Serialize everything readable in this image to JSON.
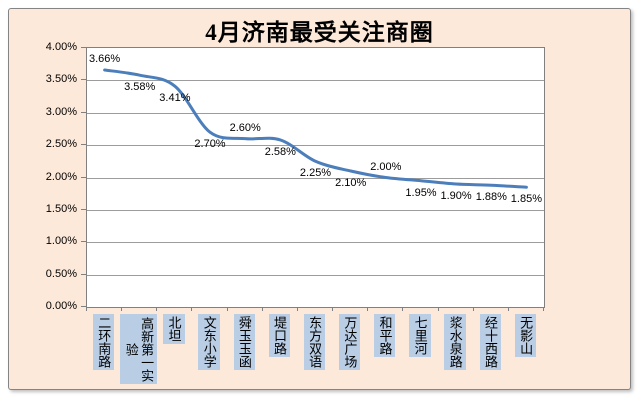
{
  "chart": {
    "frame_background": "#FDE9D9",
    "frame_border": "#848484",
    "plot_background": "#FFFFFF",
    "plot_border": "#808080",
    "gridline_color": "#9C9C9C",
    "series_color": "#4C7EBB",
    "category_highlight": "#B9CDE5",
    "text_color": "#000000"
  },
  "chart_data": {
    "type": "line",
    "title": "4月济南最受关注商圈",
    "categories": [
      "二环南路",
      "高新第一实验",
      "北坦",
      "文东小学",
      "舜玉玉函",
      "堤口路",
      "东方双语",
      "万达广场",
      "和平路",
      "七里河",
      "浆水泉路",
      "经十西路",
      "无影山"
    ],
    "values": [
      3.66,
      3.58,
      3.41,
      2.7,
      2.6,
      2.58,
      2.25,
      2.1,
      2.0,
      1.95,
      1.9,
      1.88,
      1.85
    ],
    "data_labels": [
      "3.66%",
      "3.58%",
      "3.41%",
      "2.70%",
      "2.60%",
      "2.58%",
      "2.25%",
      "2.10%",
      "2.00%",
      "1.95%",
      "1.90%",
      "1.88%",
      "1.85%"
    ],
    "data_label_positions": [
      "above",
      "below",
      "below",
      "below",
      "above",
      "below",
      "below",
      "below",
      "above",
      "below",
      "below",
      "below",
      "below"
    ],
    "xlabel": "",
    "ylabel": "",
    "ylim": [
      0,
      4
    ],
    "ytick_step": 0.5,
    "ytick_labels": [
      "0.00%",
      "0.50%",
      "1.00%",
      "1.50%",
      "2.00%",
      "2.50%",
      "3.00%",
      "3.50%",
      "4.00%"
    ],
    "grid": true,
    "legend": "none",
    "smooth": true
  }
}
